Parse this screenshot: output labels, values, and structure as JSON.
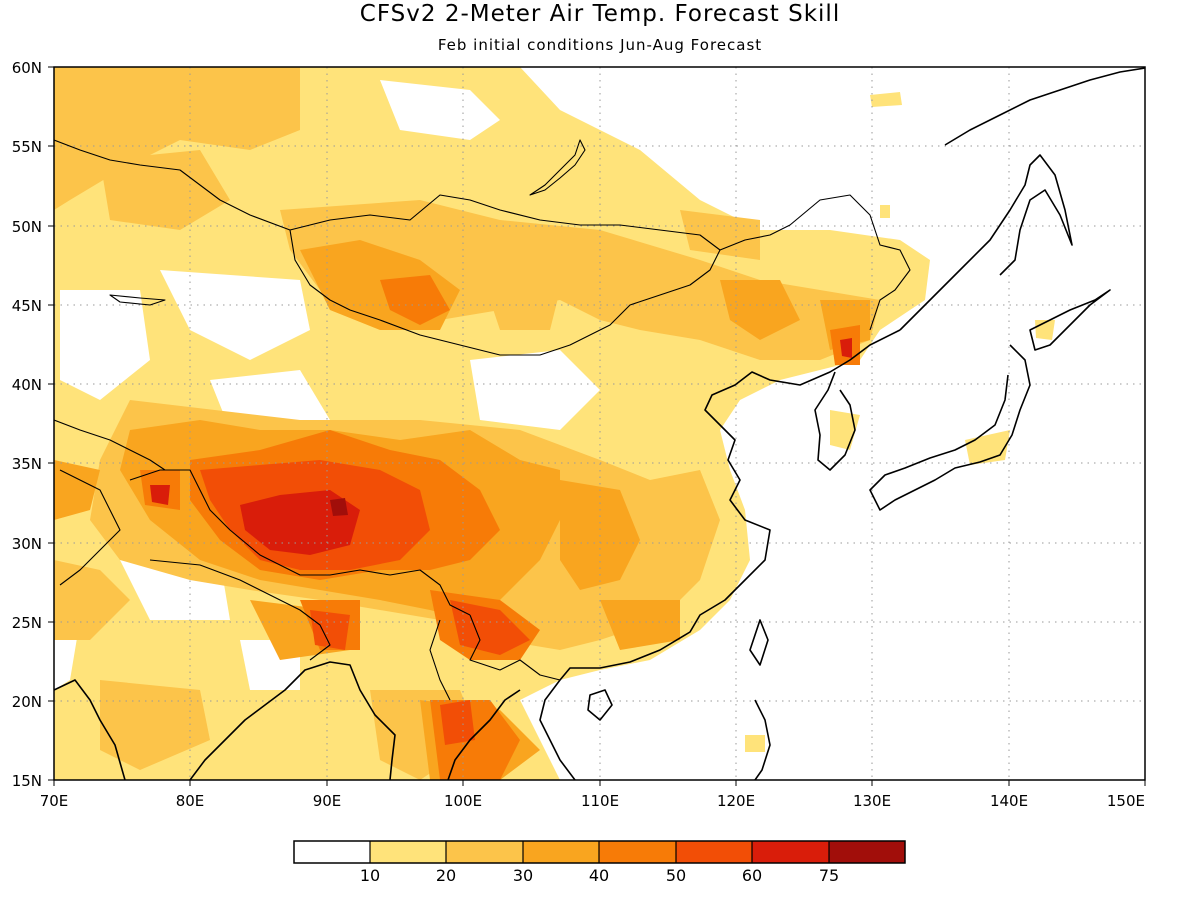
{
  "title": "CFSv2 2-Meter Air Temp. Forecast Skill",
  "subtitle": "Feb initial conditions  Jun-Aug Forecast",
  "map": {
    "lon_range": [
      70,
      150
    ],
    "lat_range": [
      15,
      60
    ],
    "x_ticks": [
      "70E",
      "80E",
      "90E",
      "100E",
      "110E",
      "120E",
      "130E",
      "140E",
      "150E"
    ],
    "y_ticks": [
      "15N",
      "20N",
      "25N",
      "30N",
      "35N",
      "40N",
      "45N",
      "50N",
      "55N",
      "60N"
    ],
    "grid": true,
    "field": "2-meter air temperature forecast skill"
  },
  "colorbar": {
    "levels": [
      "10",
      "20",
      "30",
      "40",
      "50",
      "60",
      "75"
    ],
    "colors": [
      "#ffffff",
      "#ffe37a",
      "#fcc44a",
      "#f9a51f",
      "#f77b07",
      "#f24e06",
      "#d91d0a",
      "#a10e0a"
    ]
  }
}
